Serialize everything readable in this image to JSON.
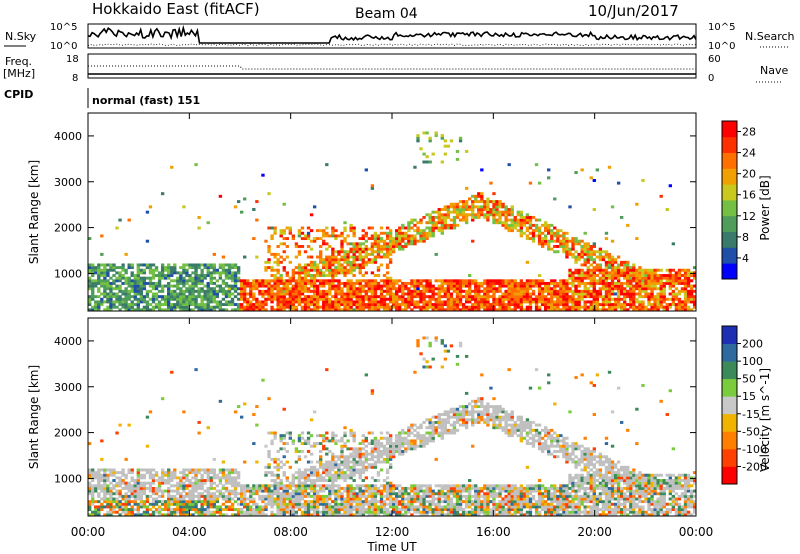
{
  "header": {
    "station": "Hokkaido East (fitACF)",
    "beam": "Beam 04",
    "date": "10/Jun/2017"
  },
  "panels": {
    "nsky": {
      "label": "N.Sky",
      "left_ticks": [
        "10^5",
        "10^0"
      ],
      "right_ticks": [
        "10^5",
        "10^0"
      ],
      "right_label": "N.Search"
    },
    "freq": {
      "label_line1": "Freq.",
      "label_line2": "[MHz]",
      "left_ticks": [
        "18",
        "8"
      ],
      "right_ticks": [
        "60",
        "0"
      ],
      "right_label": "Nave"
    },
    "cpid": {
      "label": "CPID",
      "value": "normal (fast) 151"
    }
  },
  "colors": {
    "power_scale": [
      "#0000ff",
      "#1f4fa8",
      "#3a7a6a",
      "#4e9d5a",
      "#74c044",
      "#c8c81e",
      "#f0a000",
      "#ff7000",
      "#ff3000",
      "#ff0000"
    ],
    "velocity_scale": [
      "#1e2fb4",
      "#2e6aa0",
      "#3c8a5a",
      "#7acc3c",
      "#c8c8c8",
      "#f0b400",
      "#ff8000",
      "#ff4000",
      "#ff0000"
    ],
    "ground_scatter": "#c0c0c0"
  },
  "chart_data": [
    {
      "type": "heatmap",
      "panel": "power",
      "xlabel": "Time UT",
      "ylabel": "Slant Range [km]",
      "x_ticks": [
        "00:00",
        "04:00",
        "08:00",
        "12:00",
        "16:00",
        "20:00",
        "00:00"
      ],
      "xlim_hours": [
        0,
        24
      ],
      "ylim_km": [
        180,
        4500
      ],
      "y_ticks": [
        1000,
        2000,
        3000,
        4000
      ],
      "colorbar": {
        "label": "Power [dB]",
        "ticks": [
          4,
          8,
          12,
          16,
          20,
          24,
          28
        ],
        "range": [
          0,
          30
        ]
      }
    },
    {
      "type": "heatmap",
      "panel": "velocity",
      "xlabel": "Time UT",
      "ylabel": "Slant Range [km]",
      "x_ticks": [
        "00:00",
        "04:00",
        "08:00",
        "12:00",
        "16:00",
        "20:00",
        "00:00"
      ],
      "xlim_hours": [
        0,
        24
      ],
      "ylim_km": [
        180,
        4500
      ],
      "y_ticks": [
        1000,
        2000,
        3000,
        4000
      ],
      "colorbar": {
        "label": "Velocity [m s^-1]",
        "ticks": [
          200,
          100,
          50,
          15,
          -15,
          -50,
          -100,
          -200
        ],
        "range": [
          -250,
          250
        ]
      }
    }
  ]
}
